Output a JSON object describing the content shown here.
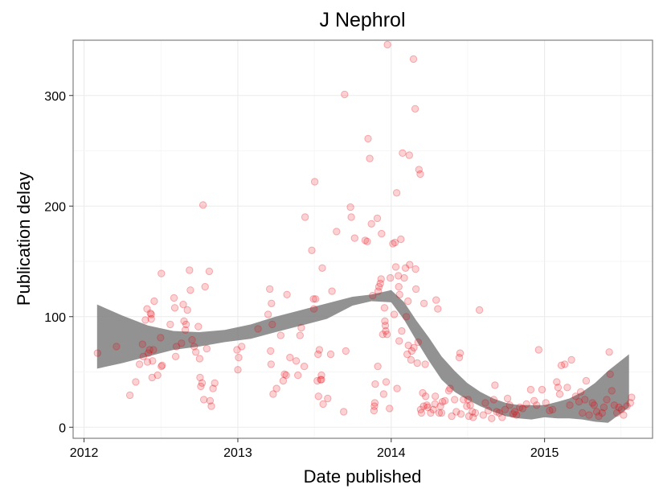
{
  "chart_data": {
    "type": "scatter",
    "title": "J Nephrol",
    "xlabel": "Date published",
    "ylabel": "Publication delay",
    "x_ticks": [
      "2012",
      "2013",
      "2014",
      "2015"
    ],
    "y_ticks": [
      0,
      100,
      200,
      300
    ],
    "xlim": [
      "2011-12-06",
      "2015-09-15"
    ],
    "ylim": [
      -10,
      350
    ],
    "grid": true,
    "point_color": "#e8000b",
    "band_color": "#7f7f7f",
    "points": [
      [
        "2012-02-02",
        67
      ],
      [
        "2012-03-18",
        73
      ],
      [
        "2012-04-19",
        29
      ],
      [
        "2012-05-03",
        41
      ],
      [
        "2012-05-12",
        57
      ],
      [
        "2012-05-19",
        75
      ],
      [
        "2012-05-21",
        64
      ],
      [
        "2012-05-26",
        97
      ],
      [
        "2012-05-30",
        107
      ],
      [
        "2012-05-31",
        59
      ],
      [
        "2012-06-02",
        67
      ],
      [
        "2012-06-05",
        70
      ],
      [
        "2012-06-07",
        103
      ],
      [
        "2012-06-09",
        102
      ],
      [
        "2012-06-09",
        98
      ],
      [
        "2012-06-11",
        45
      ],
      [
        "2012-06-12",
        60
      ],
      [
        "2012-06-14",
        70
      ],
      [
        "2012-06-16",
        114
      ],
      [
        "2012-06-24",
        47
      ],
      [
        "2012-07-01",
        81
      ],
      [
        "2012-07-03",
        139
      ],
      [
        "2012-07-03",
        55
      ],
      [
        "2012-07-05",
        56
      ],
      [
        "2012-07-24",
        93
      ],
      [
        "2012-08-02",
        117
      ],
      [
        "2012-08-04",
        108
      ],
      [
        "2012-08-06",
        64
      ],
      [
        "2012-08-08",
        73
      ],
      [
        "2012-08-20",
        76
      ],
      [
        "2012-08-24",
        111
      ],
      [
        "2012-08-26",
        96
      ],
      [
        "2012-08-29",
        88
      ],
      [
        "2012-08-31",
        93
      ],
      [
        "2012-09-03",
        106
      ],
      [
        "2012-09-08",
        142
      ],
      [
        "2012-09-10",
        124
      ],
      [
        "2012-09-14",
        79
      ],
      [
        "2012-09-19",
        73
      ],
      [
        "2012-09-23",
        68
      ],
      [
        "2012-09-29",
        91
      ],
      [
        "2012-10-02",
        62
      ],
      [
        "2012-10-03",
        45
      ],
      [
        "2012-10-05",
        37
      ],
      [
        "2012-10-08",
        40
      ],
      [
        "2012-10-10",
        201
      ],
      [
        "2012-10-12",
        25
      ],
      [
        "2012-10-15",
        127
      ],
      [
        "2012-10-19",
        71
      ],
      [
        "2012-10-25",
        141
      ],
      [
        "2012-10-27",
        24
      ],
      [
        "2012-10-30",
        19
      ],
      [
        "2012-11-03",
        35
      ],
      [
        "2012-11-07",
        40
      ],
      [
        "2012-12-30",
        70
      ],
      [
        "2013-01-01",
        52
      ],
      [
        "2013-01-03",
        63
      ],
      [
        "2013-01-10",
        73
      ],
      [
        "2013-02-18",
        89
      ],
      [
        "2013-03-14",
        102
      ],
      [
        "2013-03-18",
        125
      ],
      [
        "2013-03-20",
        69
      ],
      [
        "2013-03-21",
        57
      ],
      [
        "2013-03-22",
        112
      ],
      [
        "2013-03-24",
        93
      ],
      [
        "2013-03-26",
        30
      ],
      [
        "2013-04-03",
        35
      ],
      [
        "2013-04-13",
        83
      ],
      [
        "2013-04-19",
        42
      ],
      [
        "2013-04-22",
        48
      ],
      [
        "2013-04-26",
        47
      ],
      [
        "2013-04-28",
        120
      ],
      [
        "2013-05-05",
        63
      ],
      [
        "2013-05-20",
        60
      ],
      [
        "2013-05-24",
        47
      ],
      [
        "2013-05-29",
        83
      ],
      [
        "2013-06-01",
        90
      ],
      [
        "2013-06-08",
        55
      ],
      [
        "2013-06-10",
        190
      ],
      [
        "2013-06-26",
        160
      ],
      [
        "2013-06-30",
        116
      ],
      [
        "2013-07-01",
        107
      ],
      [
        "2013-07-03",
        222
      ],
      [
        "2013-07-05",
        116
      ],
      [
        "2013-07-09",
        42
      ],
      [
        "2013-07-11",
        66
      ],
      [
        "2013-07-12",
        28
      ],
      [
        "2013-07-14",
        70
      ],
      [
        "2013-07-17",
        43
      ],
      [
        "2013-07-19",
        43
      ],
      [
        "2013-07-19",
        47
      ],
      [
        "2013-07-21",
        144
      ],
      [
        "2013-07-23",
        21
      ],
      [
        "2013-08-03",
        26
      ],
      [
        "2013-08-10",
        66
      ],
      [
        "2013-08-13",
        123
      ],
      [
        "2013-08-24",
        177
      ],
      [
        "2013-09-10",
        14
      ],
      [
        "2013-09-12",
        301
      ],
      [
        "2013-09-15",
        69
      ],
      [
        "2013-09-26",
        199
      ],
      [
        "2013-09-28",
        190
      ],
      [
        "2013-10-06",
        171
      ],
      [
        "2013-10-31",
        169
      ],
      [
        "2013-11-05",
        168
      ],
      [
        "2013-11-07",
        261
      ],
      [
        "2013-11-11",
        243
      ],
      [
        "2013-11-15",
        184
      ],
      [
        "2013-11-18",
        119
      ],
      [
        "2013-11-21",
        15
      ],
      [
        "2013-11-22",
        19
      ],
      [
        "2013-11-23",
        22
      ],
      [
        "2013-11-24",
        39
      ],
      [
        "2013-11-29",
        189
      ],
      [
        "2013-11-30",
        55
      ],
      [
        "2013-12-01",
        123
      ],
      [
        "2013-12-03",
        127
      ],
      [
        "2013-12-06",
        130
      ],
      [
        "2013-12-08",
        134
      ],
      [
        "2013-12-09",
        175
      ],
      [
        "2013-12-12",
        84
      ],
      [
        "2013-12-14",
        30
      ],
      [
        "2013-12-16",
        108
      ],
      [
        "2013-12-17",
        96
      ],
      [
        "2013-12-18",
        92
      ],
      [
        "2013-12-19",
        87
      ],
      [
        "2013-12-20",
        41
      ],
      [
        "2013-12-22",
        84
      ],
      [
        "2013-12-23",
        346
      ],
      [
        "2013-12-28",
        17
      ],
      [
        "2013-12-30",
        135
      ],
      [
        "2014-01-05",
        166
      ],
      [
        "2014-01-08",
        102
      ],
      [
        "2014-01-10",
        167
      ],
      [
        "2014-01-12",
        145
      ],
      [
        "2014-01-14",
        212
      ],
      [
        "2014-01-15",
        35
      ],
      [
        "2014-01-18",
        137
      ],
      [
        "2014-01-19",
        127
      ],
      [
        "2014-01-20",
        78
      ],
      [
        "2014-01-21",
        120
      ],
      [
        "2014-01-24",
        170
      ],
      [
        "2014-01-26",
        87
      ],
      [
        "2014-01-28",
        248
      ],
      [
        "2014-02-01",
        135
      ],
      [
        "2014-02-04",
        144
      ],
      [
        "2014-02-06",
        100
      ],
      [
        "2014-02-08",
        66
      ],
      [
        "2014-02-10",
        114
      ],
      [
        "2014-02-11",
        74
      ],
      [
        "2014-02-13",
        246
      ],
      [
        "2014-02-14",
        147
      ],
      [
        "2014-02-17",
        61
      ],
      [
        "2014-02-19",
        69
      ],
      [
        "2014-02-23",
        333
      ],
      [
        "2014-02-24",
        72
      ],
      [
        "2014-02-27",
        288
      ],
      [
        "2014-02-28",
        143
      ],
      [
        "2014-03-01",
        125
      ],
      [
        "2014-03-04",
        58
      ],
      [
        "2014-03-06",
        77
      ],
      [
        "2014-03-08",
        233
      ],
      [
        "2014-03-11",
        229
      ],
      [
        "2014-03-12",
        16
      ],
      [
        "2014-03-14",
        13
      ],
      [
        "2014-03-17",
        31
      ],
      [
        "2014-03-19",
        19
      ],
      [
        "2014-03-20",
        112
      ],
      [
        "2014-03-23",
        57
      ],
      [
        "2014-03-24",
        28
      ],
      [
        "2014-03-27",
        20
      ],
      [
        "2014-03-29",
        18
      ],
      [
        "2014-04-05",
        13
      ],
      [
        "2014-04-11",
        16
      ],
      [
        "2014-04-15",
        21
      ],
      [
        "2014-04-16",
        28
      ],
      [
        "2014-04-18",
        115
      ],
      [
        "2014-04-22",
        107
      ],
      [
        "2014-04-25",
        13
      ],
      [
        "2014-04-28",
        19
      ],
      [
        "2014-05-01",
        13
      ],
      [
        "2014-05-03",
        23
      ],
      [
        "2014-05-09",
        24
      ],
      [
        "2014-05-18",
        33
      ],
      [
        "2014-05-21",
        35
      ],
      [
        "2014-05-25",
        10
      ],
      [
        "2014-06-01",
        25
      ],
      [
        "2014-06-05",
        14
      ],
      [
        "2014-06-12",
        63
      ],
      [
        "2014-06-14",
        67
      ],
      [
        "2014-06-16",
        12
      ],
      [
        "2014-06-22",
        25
      ],
      [
        "2014-06-30",
        19
      ],
      [
        "2014-07-03",
        25
      ],
      [
        "2014-07-05",
        10
      ],
      [
        "2014-07-08",
        20
      ],
      [
        "2014-07-13",
        14
      ],
      [
        "2014-07-15",
        9
      ],
      [
        "2014-07-20",
        13
      ],
      [
        "2014-07-30",
        106
      ],
      [
        "2014-08-08",
        11
      ],
      [
        "2014-08-13",
        22
      ],
      [
        "2014-08-20",
        15
      ],
      [
        "2014-08-28",
        8
      ],
      [
        "2014-09-02",
        25
      ],
      [
        "2014-09-05",
        38
      ],
      [
        "2014-09-09",
        14
      ],
      [
        "2014-09-15",
        13
      ],
      [
        "2014-09-22",
        9
      ],
      [
        "2014-09-29",
        16
      ],
      [
        "2014-10-05",
        26
      ],
      [
        "2014-10-10",
        20
      ],
      [
        "2014-10-18",
        12
      ],
      [
        "2014-10-22",
        14
      ],
      [
        "2014-10-26",
        11
      ],
      [
        "2014-11-03",
        18
      ],
      [
        "2014-11-10",
        17
      ],
      [
        "2014-11-19",
        21
      ],
      [
        "2014-11-29",
        34
      ],
      [
        "2014-12-07",
        24
      ],
      [
        "2014-12-13",
        20
      ],
      [
        "2014-12-18",
        70
      ],
      [
        "2014-12-26",
        34
      ],
      [
        "2015-01-04",
        22
      ],
      [
        "2015-01-13",
        15
      ],
      [
        "2015-01-20",
        16
      ],
      [
        "2015-01-30",
        41
      ],
      [
        "2015-02-02",
        36
      ],
      [
        "2015-02-06",
        30
      ],
      [
        "2015-02-10",
        56
      ],
      [
        "2015-02-18",
        57
      ],
      [
        "2015-02-24",
        36
      ],
      [
        "2015-03-02",
        20
      ],
      [
        "2015-03-06",
        61
      ],
      [
        "2015-03-16",
        28
      ],
      [
        "2015-03-24",
        23
      ],
      [
        "2015-03-28",
        32
      ],
      [
        "2015-04-01",
        13
      ],
      [
        "2015-04-07",
        25
      ],
      [
        "2015-04-10",
        42
      ],
      [
        "2015-04-17",
        11
      ],
      [
        "2015-04-25",
        22
      ],
      [
        "2015-04-29",
        20
      ],
      [
        "2015-05-05",
        14
      ],
      [
        "2015-05-10",
        10
      ],
      [
        "2015-05-18",
        13
      ],
      [
        "2015-05-22",
        18
      ],
      [
        "2015-05-29",
        25
      ],
      [
        "2015-06-04",
        68
      ],
      [
        "2015-06-06",
        48
      ],
      [
        "2015-06-10",
        33
      ],
      [
        "2015-06-16",
        20
      ],
      [
        "2015-06-22",
        13
      ],
      [
        "2015-06-27",
        18
      ],
      [
        "2015-07-03",
        16
      ],
      [
        "2015-07-08",
        11
      ],
      [
        "2015-07-16",
        19
      ],
      [
        "2015-07-24",
        22
      ],
      [
        "2015-07-27",
        27
      ]
    ],
    "smooth_band": [
      [
        "2012-02-01",
        53,
        111
      ],
      [
        "2012-04-01",
        58,
        101
      ],
      [
        "2012-06-01",
        64,
        92
      ],
      [
        "2012-08-01",
        70,
        87
      ],
      [
        "2012-10-01",
        73,
        86
      ],
      [
        "2012-12-01",
        77,
        88
      ],
      [
        "2013-02-01",
        80,
        93
      ],
      [
        "2013-04-01",
        86,
        100
      ],
      [
        "2013-06-01",
        92,
        106
      ],
      [
        "2013-08-01",
        98,
        112
      ],
      [
        "2013-10-01",
        110,
        118
      ],
      [
        "2013-11-15",
        114,
        120
      ],
      [
        "2014-01-01",
        113,
        124
      ],
      [
        "2014-02-01",
        97,
        113
      ],
      [
        "2014-03-01",
        79,
        97
      ],
      [
        "2014-04-01",
        60,
        81
      ],
      [
        "2014-05-01",
        43,
        64
      ],
      [
        "2014-06-01",
        32,
        51
      ],
      [
        "2014-07-01",
        25,
        40
      ],
      [
        "2014-08-01",
        19,
        32
      ],
      [
        "2014-09-01",
        14,
        26
      ],
      [
        "2014-10-01",
        10,
        22
      ],
      [
        "2014-11-01",
        8,
        20
      ],
      [
        "2014-12-01",
        7,
        20
      ],
      [
        "2015-01-01",
        9,
        20
      ],
      [
        "2015-02-01",
        8,
        23
      ],
      [
        "2015-03-01",
        8,
        26
      ],
      [
        "2015-04-01",
        7,
        32
      ],
      [
        "2015-05-01",
        5,
        40
      ],
      [
        "2015-06-01",
        4,
        51
      ],
      [
        "2015-07-21",
        18,
        66
      ]
    ]
  }
}
